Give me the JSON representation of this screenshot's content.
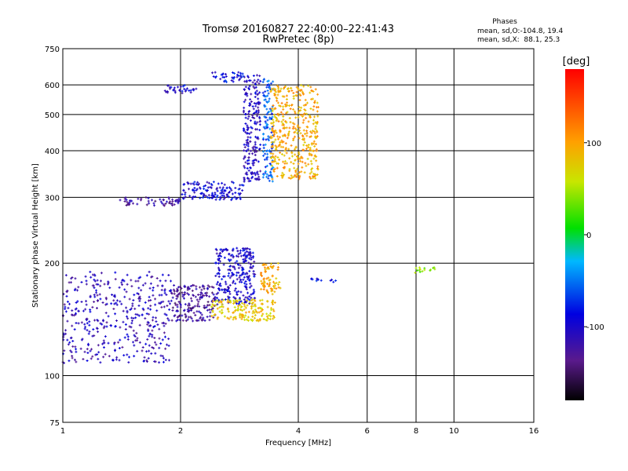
{
  "chart_data": {
    "type": "scatter",
    "title": "Tromsø 20160827 22:40:00–22:41:43",
    "subtitle": "RwPretec (8p)",
    "xlabel": "Frequency [MHz]",
    "ylabel": "Stationary phase Virtual Height [km]",
    "x_scale": "log",
    "y_scale": "log",
    "xlim": [
      1,
      16
    ],
    "ylim": [
      75,
      750
    ],
    "x_ticks": [
      1,
      2,
      4,
      6,
      8,
      10,
      16
    ],
    "y_ticks": [
      75,
      100,
      200,
      300,
      400,
      500,
      600,
      750
    ],
    "grid": true,
    "phases_header": "Phases",
    "phases_stats": [
      "mean, sd,O:-104.8, 19.4",
      "mean, sd,X:  88.1, 25.3"
    ],
    "colorbar": {
      "label": "[deg]",
      "range": [
        -180,
        180
      ],
      "ticks": [
        100,
        0,
        -100
      ],
      "tick_labels": [
        "100",
        "0",
        "-100"
      ]
    },
    "clusters": [
      {
        "freq_range": [
          1.0,
          1.9
        ],
        "height_range": [
          108,
          190
        ],
        "phase": -110
      },
      {
        "freq_range": [
          1.9,
          2.45
        ],
        "height_range": [
          140,
          175
        ],
        "phase": -125
      },
      {
        "freq_range": [
          2.45,
          3.1
        ],
        "height_range": [
          155,
          220
        ],
        "phase": -100
      },
      {
        "freq_range": [
          2.4,
          3.5
        ],
        "height_range": [
          140,
          160
        ],
        "phase": 80
      },
      {
        "freq_range": [
          3.2,
          3.6
        ],
        "height_range": [
          165,
          200
        ],
        "phase": 95
      },
      {
        "freq_range": [
          1.4,
          2.0
        ],
        "height_range": [
          285,
          300
        ],
        "phase": -125
      },
      {
        "freq_range": [
          2.0,
          2.9
        ],
        "height_range": [
          295,
          330
        ],
        "phase": -95
      },
      {
        "freq_range": [
          2.9,
          3.2
        ],
        "height_range": [
          330,
          640
        ],
        "phase": -105
      },
      {
        "freq_range": [
          3.25,
          3.45
        ],
        "height_range": [
          330,
          630
        ],
        "phase": -60
      },
      {
        "freq_range": [
          3.4,
          4.5
        ],
        "height_range": [
          335,
          600
        ],
        "phase": 95
      },
      {
        "freq_range": [
          2.4,
          2.9
        ],
        "height_range": [
          610,
          650
        ],
        "phase": -90
      },
      {
        "freq_range": [
          1.8,
          2.2
        ],
        "height_range": [
          570,
          600
        ],
        "phase": -100
      },
      {
        "freq_range": [
          4.3,
          5.0
        ],
        "height_range": [
          178,
          182
        ],
        "phase": -90
      },
      {
        "freq_range": [
          7.9,
          9.0
        ],
        "height_range": [
          188,
          195
        ],
        "phase": 40
      }
    ]
  }
}
